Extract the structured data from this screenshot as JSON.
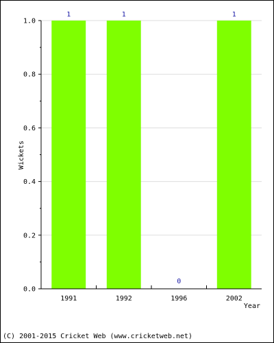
{
  "chart_data": {
    "type": "bar",
    "title": "",
    "xlabel": "Year",
    "ylabel": "Wickets",
    "categories": [
      "1991",
      "1992",
      "1996",
      "2002"
    ],
    "values": [
      1,
      1,
      0,
      1
    ],
    "data_labels": [
      "1",
      "1",
      "0",
      "1"
    ],
    "ylim": [
      0,
      1.0
    ],
    "yticks": [
      0.0,
      0.2,
      0.4,
      0.6,
      0.8,
      1.0
    ],
    "ytick_labels": [
      "0.0",
      "0.2",
      "0.4",
      "0.6",
      "0.8",
      "1.0"
    ],
    "grid": true,
    "bar_color": "#7fff00",
    "label_color": "#1a1aa6"
  },
  "footer": {
    "text": "(C) 2001-2015 Cricket Web (www.cricketweb.net)"
  }
}
